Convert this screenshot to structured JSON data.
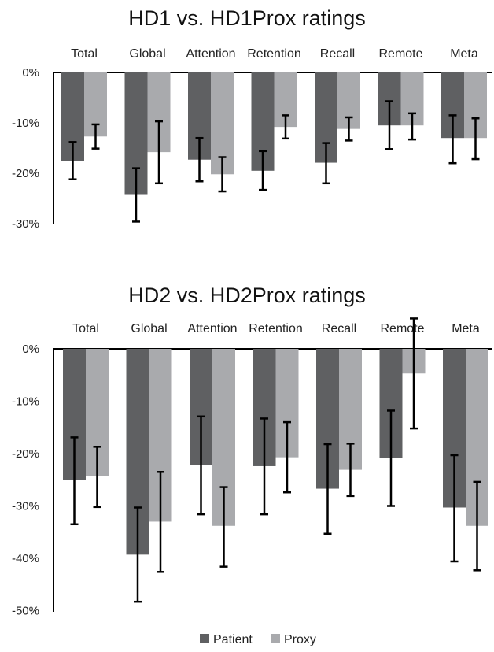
{
  "colors": {
    "Patient": "#5f6062",
    "Proxy": "#a9aaad",
    "errorbar": "#000000",
    "axis": "#000000"
  },
  "legend": {
    "placement": "bottom",
    "items": [
      "Patient",
      "Proxy"
    ]
  },
  "chart_data": [
    {
      "type": "bar",
      "title": "HD1 vs. HD1Prox ratings",
      "categories": [
        "Total",
        "Global",
        "Attention",
        "Retention",
        "Recall",
        "Remote",
        "Meta"
      ],
      "category_labels_position": "top",
      "yticks": [
        "0%",
        "-10%",
        "-20%",
        "-30%"
      ],
      "ylim": [
        -30,
        0
      ],
      "grid": false,
      "series": [
        {
          "name": "Patient",
          "values": [
            -17.5,
            -24.3,
            -17.3,
            -19.5,
            -17.9,
            -10.5,
            -13.0
          ],
          "error_low": [
            -21.2,
            -29.6,
            -21.6,
            -23.3,
            -22.0,
            -15.2,
            -18.0
          ],
          "error_high": [
            -13.8,
            -19.0,
            -13.0,
            -15.6,
            -14.0,
            -5.7,
            -8.5
          ]
        },
        {
          "name": "Proxy",
          "values": [
            -12.7,
            -15.8,
            -20.2,
            -10.8,
            -11.2,
            -10.5,
            -13.0
          ],
          "error_low": [
            -15.1,
            -22.0,
            -23.6,
            -13.1,
            -13.5,
            -13.3,
            -17.2
          ],
          "error_high": [
            -10.3,
            -9.7,
            -16.8,
            -8.5,
            -8.9,
            -8.1,
            -9.1
          ]
        }
      ]
    },
    {
      "type": "bar",
      "title": "HD2 vs. HD2Prox ratings",
      "categories": [
        "Total",
        "Global",
        "Attention",
        "Retention",
        "Recall",
        "Remote",
        "Meta"
      ],
      "category_labels_position": "top",
      "yticks": [
        "0%",
        "-10%",
        "-20%",
        "-30%",
        "-40%",
        "-50%"
      ],
      "ylim": [
        -50,
        0
      ],
      "grid": false,
      "series": [
        {
          "name": "Patient",
          "values": [
            -25.0,
            -39.3,
            -22.2,
            -22.4,
            -26.7,
            -20.8,
            -30.3
          ],
          "error_low": [
            -33.5,
            -48.3,
            -31.6,
            -31.6,
            -35.3,
            -30.0,
            -40.6
          ],
          "error_high": [
            -16.9,
            -30.3,
            -12.9,
            -13.3,
            -18.2,
            -11.8,
            -20.3
          ]
        },
        {
          "name": "Proxy",
          "values": [
            -24.3,
            -33.0,
            -33.8,
            -20.7,
            -23.1,
            -4.7,
            -33.8
          ],
          "error_low": [
            -30.2,
            -42.6,
            -41.6,
            -27.4,
            -28.1,
            -15.2,
            -42.3
          ],
          "error_high": [
            -18.7,
            -23.5,
            -26.4,
            -14.0,
            -18.1,
            5.8,
            -25.4
          ]
        }
      ]
    }
  ]
}
